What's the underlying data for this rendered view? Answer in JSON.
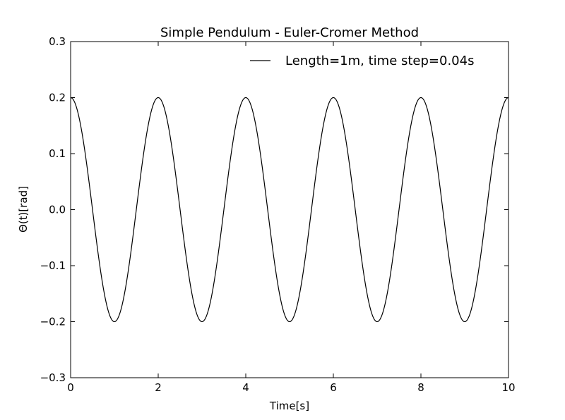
{
  "chart_data": {
    "type": "line",
    "title": "Simple Pendulum - Euler-Cromer Method",
    "xlabel": "Time[s]",
    "ylabel": "Θ(t)[rad]",
    "xlim": [
      0,
      10
    ],
    "ylim": [
      -0.3,
      0.3
    ],
    "x_ticks": [
      0,
      2,
      4,
      6,
      8,
      10
    ],
    "x_tick_labels": [
      "0",
      "2",
      "4",
      "6",
      "8",
      "10"
    ],
    "y_ticks": [
      -0.3,
      -0.2,
      -0.1,
      0.0,
      0.1,
      0.2,
      0.3
    ],
    "y_tick_labels": [
      "−0.3",
      "−0.2",
      "−0.1",
      "0.0",
      "0.1",
      "0.2",
      "0.3"
    ],
    "grid": false,
    "legend_position": "top-right",
    "series": [
      {
        "name": "Length=1m, time step=0.04s",
        "color": "#000000",
        "amplitude": 0.2,
        "period": 2.0,
        "time_step": 0.04,
        "t_start": 0,
        "t_end": 10
      }
    ]
  }
}
